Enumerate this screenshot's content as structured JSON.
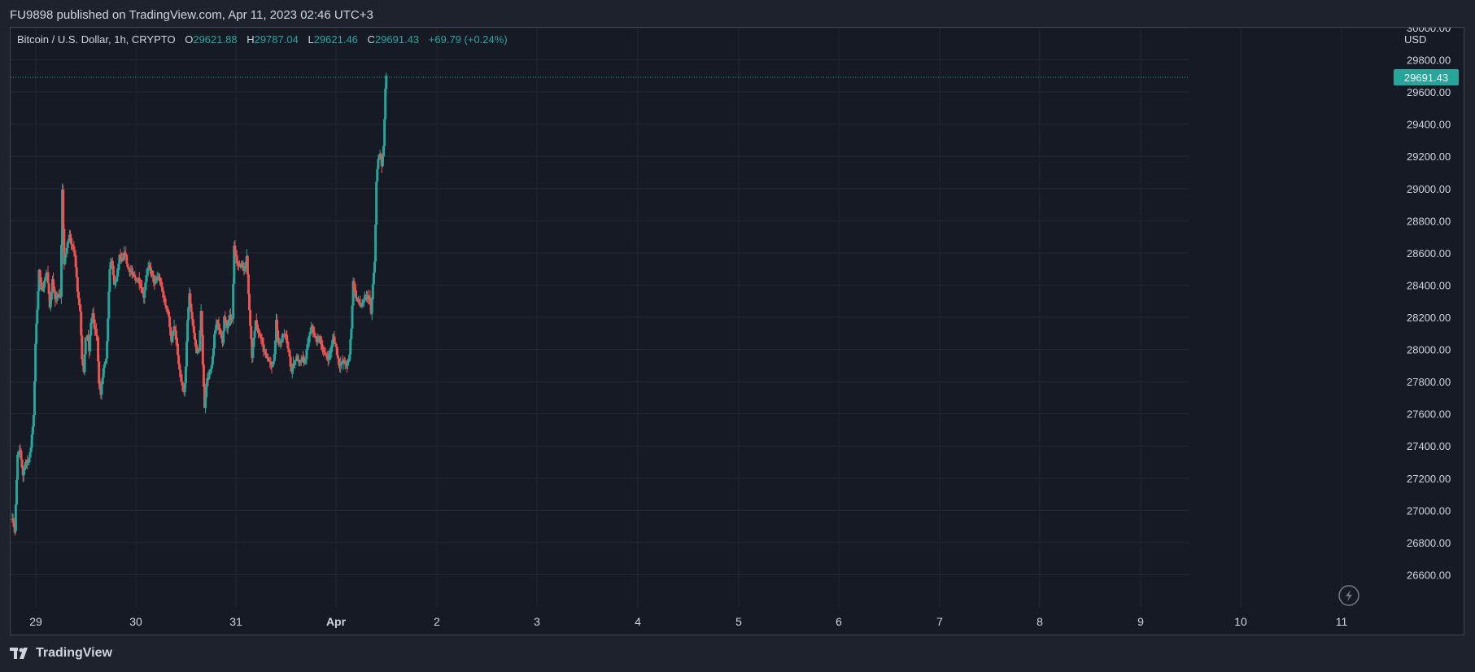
{
  "header": {
    "author": "FU9898",
    "published_text": "published on TradingView.com, Apr 11, 2023 02:46 UTC+3"
  },
  "legend": {
    "symbol": "Bitcoin / U.S. Dollar, 1h, CRYPTO",
    "o_label": "O",
    "o_value": "29621.88",
    "h_label": "H",
    "h_value": "29787.04",
    "l_label": "L",
    "l_value": "29621.46",
    "c_label": "C",
    "c_value": "29691.43",
    "change": "+69.79 (+0.24%)"
  },
  "axis": {
    "currency": "USD"
  },
  "footer": {
    "brand": "TradingView"
  },
  "colors": {
    "up": "#26a69a",
    "down": "#ef5350",
    "background": "#161a25",
    "grid": "#232733",
    "text": "#d1d4dc",
    "price_tag": "#26a69a"
  },
  "icons": {
    "footer_logo": "tradingview-logo-icon",
    "replay": "lightning-icon"
  },
  "chart_data": {
    "type": "candlestick",
    "title": "Bitcoin / U.S. Dollar, 1h, CRYPTO",
    "xlabel": "",
    "ylabel": "",
    "ylim": [
      26400,
      30000
    ],
    "y_ticks": [
      30000,
      29800,
      29600,
      29400,
      29200,
      29000,
      28800,
      28600,
      28400,
      28200,
      28000,
      27800,
      27600,
      27400,
      27200,
      27000,
      26800,
      26600
    ],
    "x_ticks": [
      "29",
      "30",
      "31",
      "Apr",
      "2",
      "3",
      "4",
      "5",
      "6",
      "7",
      "8",
      "9",
      "10",
      "11"
    ],
    "last_price": 29691.43,
    "last_price_label": "29691.43",
    "grid": true,
    "close_series": [
      [
        0,
        26960
      ],
      [
        3,
        26870
      ],
      [
        6,
        27340
      ],
      [
        9,
        27370
      ],
      [
        12,
        27220
      ],
      [
        15,
        27300
      ],
      [
        18,
        27300
      ],
      [
        21,
        27400
      ],
      [
        24,
        27580
      ],
      [
        26,
        28040
      ],
      [
        28,
        28260
      ],
      [
        30,
        28490
      ],
      [
        33,
        28360
      ],
      [
        36,
        28420
      ],
      [
        39,
        28480
      ],
      [
        42,
        28260
      ],
      [
        45,
        28430
      ],
      [
        48,
        28300
      ],
      [
        51,
        28340
      ],
      [
        54,
        28320
      ],
      [
        56,
        28990
      ],
      [
        58,
        28530
      ],
      [
        61,
        28630
      ],
      [
        64,
        28720
      ],
      [
        67,
        28640
      ],
      [
        70,
        28600
      ],
      [
        73,
        28370
      ],
      [
        76,
        28240
      ],
      [
        78,
        27950
      ],
      [
        80,
        27870
      ],
      [
        82,
        28060
      ],
      [
        84,
        28090
      ],
      [
        86,
        27990
      ],
      [
        88,
        28170
      ],
      [
        90,
        28220
      ],
      [
        92,
        28130
      ],
      [
        95,
        28070
      ],
      [
        97,
        27800
      ],
      [
        99,
        27720
      ],
      [
        102,
        27880
      ],
      [
        105,
        27930
      ],
      [
        107,
        28180
      ],
      [
        109,
        28510
      ],
      [
        111,
        28560
      ],
      [
        114,
        28400
      ],
      [
        117,
        28450
      ],
      [
        120,
        28580
      ],
      [
        123,
        28540
      ],
      [
        126,
        28610
      ],
      [
        129,
        28510
      ],
      [
        132,
        28490
      ],
      [
        135,
        28460
      ],
      [
        138,
        28430
      ],
      [
        141,
        28440
      ],
      [
        144,
        28390
      ],
      [
        147,
        28330
      ],
      [
        150,
        28470
      ],
      [
        153,
        28510
      ],
      [
        156,
        28480
      ],
      [
        159,
        28400
      ],
      [
        162,
        28450
      ],
      [
        165,
        28430
      ],
      [
        168,
        28360
      ],
      [
        171,
        28280
      ],
      [
        174,
        28240
      ],
      [
        176,
        28150
      ],
      [
        178,
        28040
      ],
      [
        181,
        28140
      ],
      [
        184,
        28030
      ],
      [
        186,
        27900
      ],
      [
        188,
        27820
      ],
      [
        190,
        27770
      ],
      [
        192,
        27730
      ],
      [
        194,
        27880
      ],
      [
        196,
        28190
      ],
      [
        198,
        28340
      ],
      [
        200,
        28240
      ],
      [
        203,
        28100
      ],
      [
        206,
        27990
      ],
      [
        209,
        28000
      ],
      [
        211,
        28230
      ],
      [
        213,
        27920
      ],
      [
        215,
        27630
      ],
      [
        217,
        27800
      ],
      [
        220,
        27840
      ],
      [
        223,
        27890
      ],
      [
        226,
        28080
      ],
      [
        229,
        28190
      ],
      [
        232,
        28110
      ],
      [
        235,
        28050
      ],
      [
        237,
        28200
      ],
      [
        240,
        28130
      ],
      [
        243,
        28200
      ],
      [
        246,
        28180
      ],
      [
        248,
        28640
      ],
      [
        250,
        28590
      ],
      [
        253,
        28510
      ],
      [
        256,
        28540
      ],
      [
        259,
        28490
      ],
      [
        262,
        28590
      ],
      [
        264,
        28340
      ],
      [
        266,
        28160
      ],
      [
        268,
        27960
      ],
      [
        270,
        28060
      ],
      [
        272,
        28190
      ],
      [
        275,
        28090
      ],
      [
        278,
        28080
      ],
      [
        281,
        27990
      ],
      [
        284,
        27960
      ],
      [
        287,
        27930
      ],
      [
        290,
        27880
      ],
      [
        293,
        27970
      ],
      [
        295,
        28170
      ],
      [
        297,
        28040
      ],
      [
        300,
        28040
      ],
      [
        303,
        28100
      ],
      [
        306,
        28080
      ],
      [
        309,
        27980
      ],
      [
        312,
        27870
      ],
      [
        315,
        27920
      ],
      [
        318,
        27950
      ],
      [
        321,
        27910
      ],
      [
        324,
        27940
      ],
      [
        327,
        27920
      ],
      [
        330,
        28020
      ],
      [
        332,
        28080
      ],
      [
        335,
        28150
      ],
      [
        338,
        28070
      ],
      [
        341,
        28060
      ],
      [
        344,
        28070
      ],
      [
        347,
        28000
      ],
      [
        350,
        27960
      ],
      [
        353,
        27950
      ],
      [
        356,
        27990
      ],
      [
        359,
        28080
      ],
      [
        362,
        28010
      ],
      [
        365,
        27910
      ],
      [
        368,
        27910
      ],
      [
        371,
        27930
      ],
      [
        374,
        27890
      ],
      [
        377,
        27970
      ],
      [
        379,
        28140
      ],
      [
        381,
        28420
      ],
      [
        384,
        28330
      ],
      [
        387,
        28300
      ],
      [
        390,
        28270
      ],
      [
        393,
        28300
      ],
      [
        396,
        28330
      ],
      [
        399,
        28320
      ],
      [
        401,
        28220
      ],
      [
        403,
        28400
      ],
      [
        405,
        28540
      ],
      [
        407,
        29040
      ],
      [
        409,
        29180
      ],
      [
        411,
        29220
      ],
      [
        413,
        29140
      ],
      [
        415,
        29250
      ],
      [
        417,
        29620
      ],
      [
        418,
        29691
      ]
    ]
  }
}
